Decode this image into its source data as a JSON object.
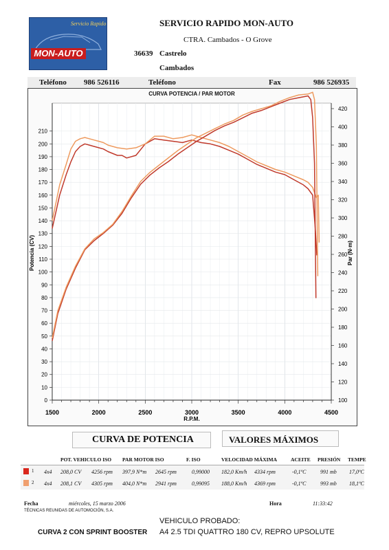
{
  "header": {
    "logo_script": "Servicio Rapido",
    "logo_name": "MON-AUTO",
    "company": "SERVICIO RAPIDO MON-AUTO",
    "address": "CTRA. Cambados - O Grove",
    "zip": "36639",
    "city": "Castrelo",
    "town": "Cambados",
    "phone_label": "Teléfono",
    "phone": "986 526116",
    "phone2_label": "Teléfono",
    "fax_label": "Fax",
    "fax": "986 526935"
  },
  "chart_data": {
    "type": "line",
    "title": "CURVA POTENCIA / PAR MOTOR",
    "xlabel": "R.P.M.",
    "ylabel_left": "Potencia (CV)",
    "ylabel_right": "Par (N·m)",
    "xlim": [
      1500,
      4500
    ],
    "ylim_left": [
      0,
      220
    ],
    "ylim_right": [
      100,
      420
    ],
    "x_ticks": [
      "1500",
      "2000",
      "2500",
      "3000",
      "3500",
      "4000",
      "4500"
    ],
    "y_ticks_left": [
      "0",
      "10",
      "20",
      "30",
      "40",
      "50",
      "60",
      "70",
      "80",
      "90",
      "100",
      "110",
      "120",
      "130",
      "140",
      "150",
      "160",
      "170",
      "180",
      "190",
      "200",
      "210"
    ],
    "y_ticks_right": [
      "100",
      "120",
      "140",
      "160",
      "180",
      "200",
      "220",
      "240",
      "260",
      "280",
      "300",
      "320",
      "340",
      "360",
      "380",
      "400",
      "420"
    ],
    "grid": true,
    "series": [
      {
        "name": "1",
        "axis": "left",
        "color": "#c0392b",
        "x": [
          1500,
          1580,
          1650,
          1700,
          1750,
          1800,
          1850,
          1900,
          1950,
          2000,
          2050,
          2100,
          2200,
          2250,
          2300,
          2400,
          2500,
          2600,
          2700,
          2800,
          2900,
          3000,
          3100,
          3200,
          3300,
          3400,
          3500,
          3600,
          3700,
          3800,
          3900,
          4000,
          4100,
          4200,
          4250,
          4300,
          4330,
          4345
        ],
        "y": [
          134,
          160,
          176,
          186,
          194,
          198,
          200,
          199,
          198,
          197,
          196,
          194,
          191,
          191,
          189,
          191,
          200,
          204,
          203,
          202,
          201,
          203,
          201,
          200,
          198,
          195,
          192,
          188,
          184,
          181,
          178,
          176,
          172,
          168,
          165,
          160,
          132,
          113
        ]
      },
      {
        "name": "2",
        "axis": "left",
        "color": "#ee9a5e",
        "x": [
          1500,
          1580,
          1650,
          1700,
          1750,
          1800,
          1850,
          1900,
          1950,
          2000,
          2050,
          2100,
          2200,
          2300,
          2400,
          2500,
          2600,
          2700,
          2800,
          2900,
          3000,
          3100,
          3200,
          3300,
          3400,
          3500,
          3600,
          3700,
          3800,
          3900,
          4000,
          4100,
          4200,
          4250,
          4300,
          4340,
          4360,
          4370
        ],
        "y": [
          140,
          168,
          184,
          196,
          202,
          204,
          205,
          204,
          203,
          202,
          201,
          199,
          197,
          196,
          197,
          200,
          206,
          206,
          204,
          205,
          207,
          205,
          203,
          201,
          198,
          194,
          190,
          186,
          183,
          180,
          178,
          175,
          172,
          170,
          166,
          158,
          160,
          123
        ]
      },
      {
        "name": "1",
        "axis": "right",
        "color": "#c0392b",
        "x": [
          1500,
          1560,
          1650,
          1750,
          1850,
          1950,
          2050,
          2150,
          2250,
          2350,
          2450,
          2550,
          2650,
          2750,
          2850,
          2950,
          3050,
          3150,
          3250,
          3350,
          3450,
          3550,
          3650,
          3750,
          3850,
          3950,
          4050,
          4150,
          4250,
          4280,
          4300,
          4320,
          4335
        ],
        "y": [
          165,
          195,
          222,
          245,
          265,
          275,
          283,
          292,
          305,
          322,
          337,
          347,
          355,
          362,
          370,
          377,
          384,
          390,
          396,
          401,
          405,
          410,
          415,
          418,
          422,
          426,
          430,
          432,
          434,
          430,
          410,
          360,
          212
        ]
      },
      {
        "name": "2",
        "axis": "right",
        "color": "#ee9a5e",
        "x": [
          1500,
          1560,
          1650,
          1750,
          1850,
          1950,
          2050,
          2150,
          2250,
          2350,
          2450,
          2550,
          2650,
          2750,
          2850,
          2950,
          3050,
          3150,
          3250,
          3350,
          3450,
          3550,
          3650,
          3750,
          3850,
          3950,
          4050,
          4150,
          4250,
          4300,
          4320,
          4340,
          4355
        ],
        "y": [
          168,
          198,
          224,
          247,
          266,
          277,
          284,
          293,
          307,
          324,
          340,
          350,
          358,
          366,
          374,
          381,
          388,
          393,
          398,
          403,
          407,
          413,
          417,
          420,
          423,
          428,
          432,
          435,
          436,
          438,
          430,
          380,
          236
        ]
      }
    ]
  },
  "sections": {
    "curve_title": "CURVA DE POTENCIA",
    "max_title": "VALORES MÁXIMOS"
  },
  "table": {
    "headers": [
      "POT. VEHICULO ISO",
      "PAR MOTOR ISO",
      "F. ISO",
      "VELOCIDAD MÁXIMA",
      "ACEITE",
      "PRESIÓN",
      "TEMPE"
    ],
    "rows": [
      {
        "num": "1",
        "color": "#d9261c",
        "drive": "4x4",
        "pot": "208,0 CV",
        "pot_rpm": "4256 rpm",
        "par": "397,9 N*m",
        "par_rpm": "2645 rpm",
        "fiso": "0,99000",
        "vel": "182,0 Km/h",
        "vel_rpm": "4334 rpm",
        "aceite": "-0,1ºC",
        "presion": "991 mb",
        "temp": "17,0ºC"
      },
      {
        "num": "2",
        "color": "#f0a070",
        "drive": "4x4",
        "pot": "208,1 CV",
        "pot_rpm": "4305 rpm",
        "par": "404,0 N*m",
        "par_rpm": "2941 rpm",
        "fiso": "0,99095",
        "vel": "188,0 Km/h",
        "vel_rpm": "4369 rpm",
        "aceite": "-0,1ºC",
        "presion": "993 mb",
        "temp": "18,1ºC"
      }
    ]
  },
  "footer": {
    "fecha_label": "Fecha",
    "fecha": "miércoles, 15 marzo 2006",
    "hora_label": "Hora",
    "hora": "11:33:42",
    "company_sub": "TÉCNICAS REUNIDAS DE AUTOMOCIÓN, S.A.",
    "vehicle_label": "VEHICULO PROBADO:",
    "vehicle": "A4 2.5 TDI QUATTRO 180 CV,  REPRO UPSOLUTE",
    "curve_note": "CURVA 2  CON SPRINT BOOSTER"
  }
}
